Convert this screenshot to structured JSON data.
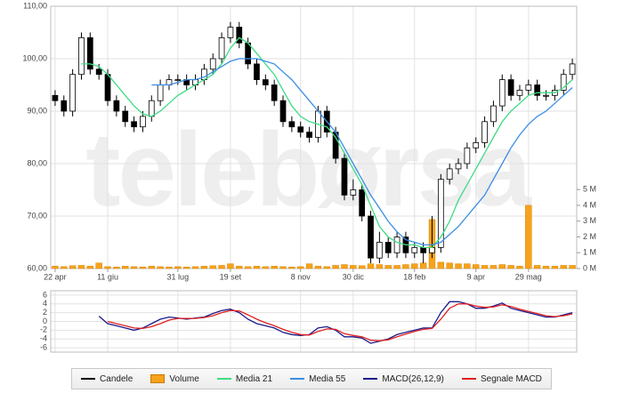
{
  "chart_data": [
    {
      "type": "candlestick",
      "watermark": "telebørsa",
      "grid": true,
      "legend": "bottom",
      "categories": [
        "22 apr",
        null,
        null,
        null,
        null,
        null,
        "11 giu",
        null,
        null,
        null,
        null,
        null,
        null,
        null,
        "31 lug",
        null,
        null,
        null,
        null,
        null,
        "19 set",
        null,
        null,
        null,
        null,
        null,
        null,
        null,
        "8 nov",
        null,
        null,
        null,
        null,
        null,
        "30 dic",
        null,
        null,
        null,
        null,
        null,
        null,
        "18 feb",
        null,
        null,
        null,
        null,
        null,
        null,
        "9 apr",
        null,
        null,
        null,
        null,
        null,
        "29 mag",
        null,
        null,
        null,
        null,
        null
      ],
      "ylim": [
        60,
        110
      ],
      "yticks": [
        {
          "value": 110,
          "label": "110,00"
        },
        {
          "value": 100,
          "label": "100,00"
        },
        {
          "value": 90,
          "label": "90,00"
        },
        {
          "value": 80,
          "label": "80,00"
        },
        {
          "value": 70,
          "label": "70,00"
        },
        {
          "value": 60,
          "label": "60,00"
        }
      ],
      "y2lim": [
        0,
        16.6
      ],
      "y2ticks": [
        {
          "value": 5,
          "label": "5 M"
        },
        {
          "value": 4,
          "label": "4 M"
        },
        {
          "value": 3,
          "label": "3 M"
        },
        {
          "value": 2,
          "label": "2 M"
        },
        {
          "value": 1,
          "label": "1 M"
        },
        {
          "value": 0,
          "label": "0 M"
        }
      ],
      "series": [
        {
          "name": "Candele",
          "type": "candlestick",
          "color": "#000000",
          "open": [
            93,
            92,
            90,
            97,
            104,
            98,
            97,
            92,
            90,
            88,
            87,
            89,
            92,
            95,
            96,
            96,
            95,
            96,
            98,
            100,
            104,
            106,
            103,
            99,
            96,
            95,
            92,
            88,
            87,
            86,
            85,
            90,
            86,
            81,
            74,
            75,
            70,
            62,
            65,
            63,
            66,
            63,
            64,
            63,
            64,
            77,
            79,
            80,
            83,
            84,
            88,
            91,
            96,
            93,
            94,
            95,
            93,
            93,
            94,
            97
          ],
          "high": [
            94,
            93,
            98,
            105,
            105,
            99,
            98,
            93,
            91,
            89,
            90,
            93,
            96,
            97,
            97,
            97,
            97,
            99,
            101,
            105,
            107,
            107,
            104,
            100,
            97,
            96,
            93,
            89,
            88,
            87,
            91,
            91,
            87,
            82,
            77,
            76,
            71,
            67,
            66,
            67,
            67,
            65,
            65,
            70,
            78,
            80,
            81,
            84,
            85,
            89,
            92,
            97,
            97,
            95,
            96,
            96,
            94,
            95,
            98,
            100
          ],
          "low": [
            91,
            89,
            89,
            96,
            97,
            96,
            91,
            89,
            87,
            86,
            86,
            88,
            91,
            94,
            95,
            94,
            94,
            95,
            97,
            99,
            103,
            102,
            98,
            95,
            94,
            91,
            87,
            86,
            85,
            84,
            84,
            85,
            80,
            73,
            73,
            69,
            61,
            61,
            62,
            62,
            62,
            62,
            61,
            62,
            63,
            76,
            78,
            79,
            82,
            83,
            87,
            90,
            92,
            92,
            93,
            92,
            92,
            92,
            93,
            96
          ],
          "close": [
            92,
            90,
            97,
            104,
            98,
            97,
            92,
            90,
            88,
            87,
            89,
            92,
            95,
            96,
            96,
            95,
            96,
            98,
            100,
            104,
            106,
            103,
            99,
            96,
            95,
            92,
            88,
            87,
            86,
            85,
            90,
            86,
            81,
            74,
            75,
            70,
            62,
            65,
            63,
            66,
            63,
            64,
            63,
            64,
            77,
            79,
            80,
            83,
            84,
            88,
            91,
            96,
            93,
            94,
            95,
            93,
            93,
            94,
            97,
            99
          ]
        },
        {
          "name": "Volume",
          "type": "bar",
          "axis": "y2",
          "color": "#f7a21b",
          "values": [
            0.15,
            0.12,
            0.18,
            0.2,
            0.15,
            0.35,
            0.12,
            0.1,
            0.15,
            0.12,
            0.1,
            0.15,
            0.12,
            0.1,
            0.12,
            0.1,
            0.12,
            0.15,
            0.18,
            0.2,
            0.3,
            0.15,
            0.12,
            0.15,
            0.12,
            0.15,
            0.12,
            0.1,
            0.12,
            0.3,
            0.15,
            0.12,
            0.2,
            0.25,
            0.2,
            0.18,
            0.3,
            0.25,
            0.2,
            0.2,
            0.25,
            0.3,
            0.35,
            3.1,
            0.4,
            0.35,
            0.3,
            0.3,
            0.25,
            0.2,
            0.2,
            0.25,
            0.2,
            0.15,
            4.0,
            0.2,
            0.15,
            0.15,
            0.2,
            0.2
          ]
        },
        {
          "name": "Media 21",
          "type": "line",
          "color": "#3ddc84",
          "values": [
            null,
            null,
            null,
            99,
            99,
            98.5,
            97,
            95,
            93,
            91,
            89.5,
            89,
            90,
            91.5,
            93,
            94,
            95,
            96,
            97,
            99,
            102,
            104,
            103,
            101,
            99,
            97,
            94,
            91,
            89,
            88,
            87.5,
            87,
            85,
            82,
            79,
            76,
            72,
            68,
            66,
            65,
            64.5,
            64.5,
            64,
            64,
            66,
            69,
            73,
            76,
            79,
            82,
            85,
            88,
            90,
            91.5,
            93,
            93.5,
            93.5,
            93.5,
            94.5,
            96
          ]
        },
        {
          "name": "Media 55",
          "type": "line",
          "color": "#3a8ee6",
          "values": [
            null,
            null,
            null,
            null,
            null,
            null,
            null,
            null,
            null,
            null,
            null,
            95,
            95,
            95,
            95.5,
            96,
            96,
            96.5,
            97.5,
            98.5,
            99.5,
            100,
            100,
            100,
            99.5,
            99,
            97.5,
            96,
            94,
            92,
            90,
            88,
            86,
            83,
            80,
            77,
            74,
            71.5,
            69,
            67,
            65.5,
            65,
            64.5,
            64.5,
            65,
            66.5,
            68,
            70,
            72,
            74,
            77,
            80,
            83,
            85.5,
            87.5,
            89,
            90,
            91.5,
            93,
            94.5
          ]
        }
      ]
    },
    {
      "type": "line",
      "grid": true,
      "ylim": [
        -7,
        7
      ],
      "yticks": [
        6,
        4,
        2,
        0,
        -2,
        -4,
        -6
      ],
      "series": [
        {
          "name": "MACD(26,12,9)",
          "type": "line",
          "color": "#1a1a8c",
          "values": [
            null,
            null,
            null,
            null,
            null,
            1.2,
            -0.5,
            -1,
            -1.5,
            -2,
            -1.5,
            -0.5,
            0.5,
            1,
            0.8,
            0.5,
            0.8,
            1,
            1.8,
            2.5,
            2.8,
            2,
            0.5,
            -0.5,
            -1,
            -1.5,
            -2.5,
            -3,
            -3.2,
            -3,
            -1.5,
            -1.2,
            -2,
            -3.5,
            -3.5,
            -3.8,
            -5,
            -4.5,
            -4,
            -3,
            -2.5,
            -2,
            -1.5,
            -1.5,
            2,
            4.5,
            4.5,
            4,
            3,
            3,
            3.5,
            4.2,
            3,
            2.5,
            2,
            1.5,
            1,
            1,
            1.5,
            2
          ]
        },
        {
          "name": "Segnale MACD",
          "type": "line",
          "color": "#e02020",
          "values": [
            null,
            null,
            null,
            null,
            null,
            null,
            0,
            -0.5,
            -1,
            -1.5,
            -1.6,
            -1.2,
            -0.5,
            0.3,
            0.7,
            0.7,
            0.7,
            0.9,
            1.3,
            2,
            2.5,
            2.4,
            1.5,
            0.5,
            -0.3,
            -1,
            -1.8,
            -2.5,
            -3,
            -3.1,
            -2.3,
            -1.7,
            -1.8,
            -2.8,
            -3.2,
            -3.5,
            -4.3,
            -4.4,
            -4.2,
            -3.5,
            -2.9,
            -2.3,
            -1.8,
            -1.6,
            0.5,
            3,
            4,
            4,
            3.5,
            3.2,
            3.3,
            3.8,
            3.4,
            2.8,
            2.3,
            1.8,
            1.3,
            1.1,
            1.3,
            1.7
          ]
        }
      ]
    }
  ]
}
